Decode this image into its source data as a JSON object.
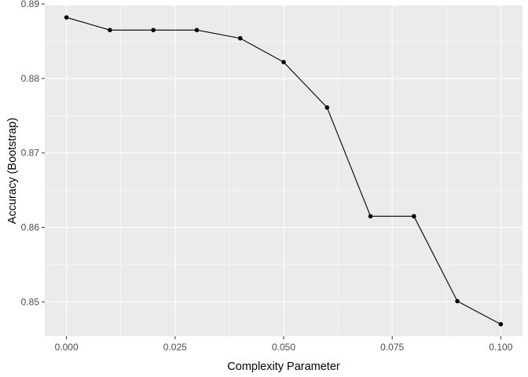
{
  "chart_data": {
    "type": "line",
    "title": "",
    "xlabel": "Complexity Parameter",
    "ylabel": "Accuracy (Bootstrap)",
    "x": [
      0.0,
      0.01,
      0.02,
      0.03,
      0.04,
      0.05,
      0.06,
      0.07,
      0.08,
      0.09,
      0.1
    ],
    "series": [
      {
        "values": [
          0.8882,
          0.8865,
          0.8865,
          0.8865,
          0.8854,
          0.8822,
          0.8761,
          0.8615,
          0.8615,
          0.8501,
          0.847
        ]
      }
    ],
    "xlim": [
      -0.005,
      0.105
    ],
    "ylim": [
      0.8454,
      0.8898
    ],
    "x_ticks": [
      0.0,
      0.025,
      0.05,
      0.075,
      0.1
    ],
    "x_tick_labels": [
      "0.000",
      "0.025",
      "0.050",
      "0.075",
      "0.100"
    ],
    "y_ticks": [
      0.85,
      0.86,
      0.87,
      0.88,
      0.89
    ],
    "y_tick_labels": [
      "0.85",
      "0.86",
      "0.87",
      "0.88",
      "0.89"
    ],
    "grid": true,
    "legend": "none",
    "colors": {
      "panel_background": "#ebebeb",
      "grid": "#ffffff",
      "line": "#000000",
      "point": "#000000",
      "tick_mark": "#333333"
    }
  }
}
